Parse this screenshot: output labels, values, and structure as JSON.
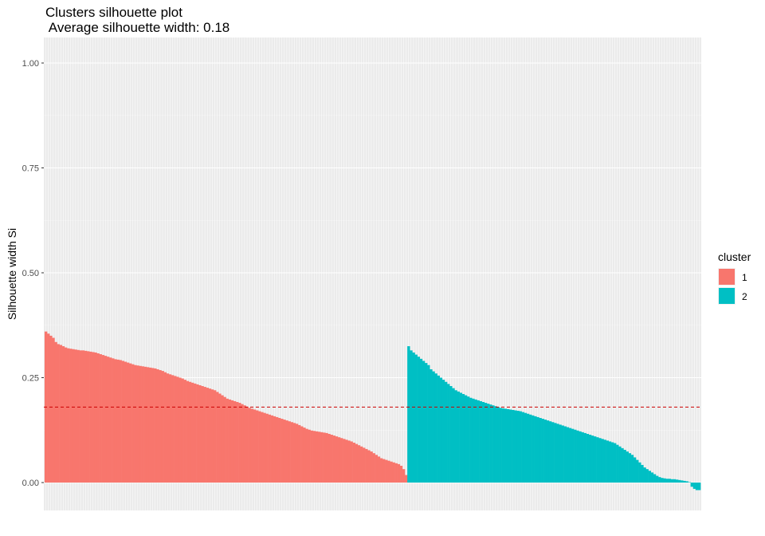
{
  "chart_data": {
    "type": "bar",
    "title": "Clusters silhouette plot\n Average silhouette width: 0.18",
    "ylabel": "Silhouette width Si",
    "xlabel": "",
    "ylim": [
      -0.07,
      1.05
    ],
    "yticks": [
      0.0,
      0.25,
      0.5,
      0.75,
      1.0
    ],
    "ytick_labels": [
      "0.00",
      "0.25",
      "0.50",
      "0.75",
      "1.00"
    ],
    "grid": true,
    "background": "#EBEBEB",
    "average_line": {
      "value": 0.18,
      "color": "#CC0000",
      "style": "dashed"
    },
    "legend": {
      "title": "cluster",
      "position": "right"
    },
    "series": [
      {
        "name": "1",
        "color": "#F8766D",
        "values": [
          0.36,
          0.355,
          0.35,
          0.345,
          0.335,
          0.33,
          0.328,
          0.325,
          0.322,
          0.32,
          0.319,
          0.318,
          0.317,
          0.316,
          0.315,
          0.315,
          0.314,
          0.313,
          0.312,
          0.311,
          0.31,
          0.308,
          0.306,
          0.304,
          0.302,
          0.3,
          0.298,
          0.296,
          0.294,
          0.293,
          0.292,
          0.29,
          0.288,
          0.286,
          0.284,
          0.282,
          0.28,
          0.279,
          0.278,
          0.277,
          0.276,
          0.275,
          0.274,
          0.273,
          0.272,
          0.27,
          0.268,
          0.266,
          0.263,
          0.26,
          0.258,
          0.256,
          0.254,
          0.252,
          0.25,
          0.248,
          0.245,
          0.242,
          0.24,
          0.238,
          0.236,
          0.234,
          0.232,
          0.23,
          0.228,
          0.226,
          0.224,
          0.222,
          0.22,
          0.216,
          0.212,
          0.208,
          0.204,
          0.2,
          0.198,
          0.196,
          0.194,
          0.192,
          0.19,
          0.187,
          0.184,
          0.181,
          0.178,
          0.176,
          0.174,
          0.172,
          0.17,
          0.168,
          0.166,
          0.164,
          0.162,
          0.16,
          0.158,
          0.156,
          0.154,
          0.152,
          0.15,
          0.148,
          0.146,
          0.144,
          0.142,
          0.14,
          0.137,
          0.134,
          0.131,
          0.128,
          0.126,
          0.124,
          0.123,
          0.122,
          0.121,
          0.12,
          0.119,
          0.118,
          0.116,
          0.114,
          0.112,
          0.11,
          0.108,
          0.106,
          0.104,
          0.102,
          0.1,
          0.098,
          0.095,
          0.092,
          0.089,
          0.086,
          0.083,
          0.08,
          0.077,
          0.074,
          0.07,
          0.066,
          0.062,
          0.058,
          0.056,
          0.054,
          0.052,
          0.05,
          0.048,
          0.046,
          0.044,
          0.04,
          0.032,
          0.018
        ]
      },
      {
        "name": "2",
        "color": "#00BFC4",
        "values": [
          0.325,
          0.315,
          0.31,
          0.305,
          0.3,
          0.295,
          0.29,
          0.285,
          0.28,
          0.27,
          0.265,
          0.26,
          0.255,
          0.25,
          0.245,
          0.24,
          0.235,
          0.23,
          0.225,
          0.22,
          0.217,
          0.214,
          0.211,
          0.208,
          0.205,
          0.202,
          0.2,
          0.198,
          0.196,
          0.194,
          0.192,
          0.19,
          0.188,
          0.186,
          0.184,
          0.182,
          0.18,
          0.178,
          0.177,
          0.176,
          0.175,
          0.174,
          0.173,
          0.172,
          0.171,
          0.17,
          0.168,
          0.166,
          0.164,
          0.162,
          0.16,
          0.158,
          0.156,
          0.154,
          0.152,
          0.15,
          0.148,
          0.146,
          0.144,
          0.142,
          0.14,
          0.138,
          0.136,
          0.134,
          0.132,
          0.13,
          0.128,
          0.126,
          0.124,
          0.122,
          0.12,
          0.118,
          0.116,
          0.114,
          0.112,
          0.11,
          0.108,
          0.106,
          0.104,
          0.102,
          0.1,
          0.098,
          0.096,
          0.094,
          0.09,
          0.086,
          0.082,
          0.078,
          0.074,
          0.07,
          0.066,
          0.06,
          0.054,
          0.048,
          0.042,
          0.036,
          0.032,
          0.028,
          0.024,
          0.02,
          0.016,
          0.013,
          0.011,
          0.01,
          0.009,
          0.009,
          0.008,
          0.008,
          0.007,
          0.006,
          0.005,
          0.004,
          0.003,
          0.001,
          -0.01,
          -0.015,
          -0.018,
          -0.018
        ]
      }
    ]
  }
}
